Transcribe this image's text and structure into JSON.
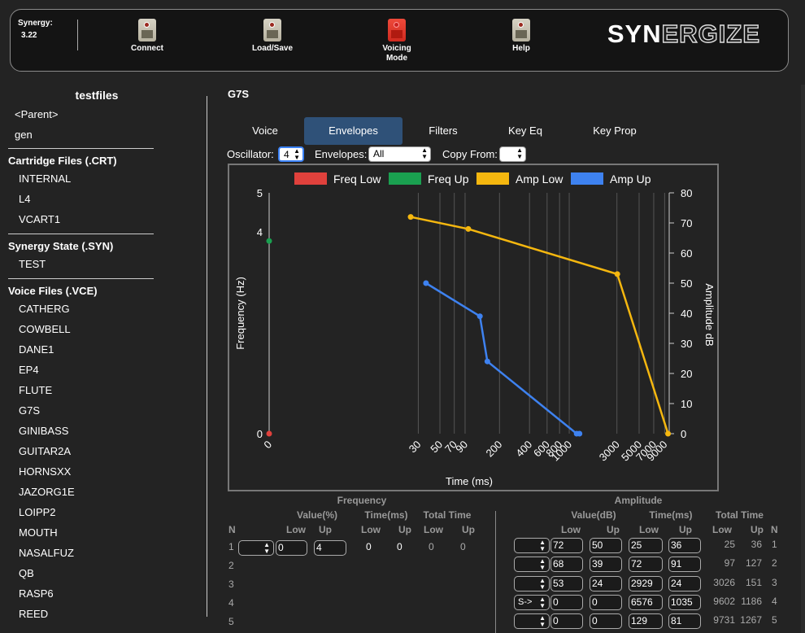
{
  "app": {
    "version_label": "Synergy:",
    "version": "3.22",
    "logo_bold": "SYN",
    "logo_outline": "ERGIZE"
  },
  "toolbar": {
    "connect": "Connect",
    "load_save": "Load/Save",
    "voicing_mode_1": "Voicing",
    "voicing_mode_2": "Mode",
    "help": "Help"
  },
  "sidebar": {
    "folder": "testfiles",
    "parent": "<Parent>",
    "gen": "gen",
    "crt_header": "Cartridge Files (.CRT)",
    "crt_files": [
      "INTERNAL",
      "L4",
      "VCART1"
    ],
    "syn_header": "Synergy State (.SYN)",
    "syn_files": [
      "TEST"
    ],
    "vce_header": "Voice Files (.VCE)",
    "vce_files": [
      "CATHERG",
      "COWBELL",
      "DANE1",
      "EP4",
      "FLUTE",
      "G7S",
      "GINIBASS",
      "GUITAR2A",
      "HORNSXX",
      "JAZORG1E",
      "LOIPP2",
      "MOUTH",
      "NASALFUZ",
      "QB",
      "RASP6",
      "REED"
    ]
  },
  "voice": {
    "name": "G7S"
  },
  "tabs": [
    "Voice",
    "Envelopes",
    "Filters",
    "Key Eq",
    "Key Prop"
  ],
  "controls": {
    "osc_label": "Oscillator:",
    "osc_value": "4",
    "env_label": "Envelopes:",
    "env_value": "All",
    "copy_label": "Copy From:",
    "copy_value": ""
  },
  "chart_data": {
    "type": "line",
    "legend": [
      "Freq Low",
      "Freq Up",
      "Amp Low",
      "Amp Up"
    ],
    "colors": {
      "freq_low": "#e0413c",
      "freq_up": "#1aa050",
      "amp_low": "#f5b70f",
      "amp_up": "#3e82f0"
    },
    "xlabel": "Time (ms)",
    "ylabel_left": "Frequency (Hz)",
    "ylabel_right": "Amplitude dB",
    "x_ticks": [
      0,
      30,
      50,
      70,
      90,
      200,
      400,
      600,
      800,
      1000,
      3000,
      5000,
      7000,
      9000
    ],
    "y_left_ticks": [
      0,
      4,
      5
    ],
    "y_right_ticks": [
      0,
      10,
      20,
      30,
      40,
      50,
      60,
      70,
      80
    ],
    "series": [
      {
        "name": "Freq Low",
        "axis": "left",
        "points": [
          [
            0,
            0
          ]
        ]
      },
      {
        "name": "Freq Up",
        "axis": "left",
        "points": [
          [
            0,
            4
          ]
        ]
      },
      {
        "name": "Amp Low",
        "axis": "right",
        "points": [
          [
            25,
            72
          ],
          [
            97,
            68
          ],
          [
            3026,
            53
          ],
          [
            9731,
            0
          ]
        ]
      },
      {
        "name": "Amp Up",
        "axis": "right",
        "points": [
          [
            36,
            50
          ],
          [
            127,
            39
          ],
          [
            151,
            24
          ],
          [
            1186,
            0
          ],
          [
            1267,
            0
          ]
        ]
      }
    ]
  },
  "freq_table": {
    "title": "Frequency",
    "value_hdr": "Value(%)",
    "time_hdr": "Time(ms)",
    "total_hdr": "Total Time",
    "n_hdr": "N",
    "low": "Low",
    "up": "Up",
    "rows": [
      {
        "n": "1",
        "sel": "",
        "low": "0",
        "up": "4",
        "tlow": "0",
        "tup": "0",
        "totlow": "0",
        "totup": "0"
      },
      {
        "n": "2"
      },
      {
        "n": "3"
      },
      {
        "n": "4"
      },
      {
        "n": "5"
      }
    ]
  },
  "amp_table": {
    "title": "Amplitude",
    "value_hdr": "Value(dB)",
    "time_hdr": "Time(ms)",
    "total_hdr": "Total Time",
    "n_hdr": "N",
    "low": "Low",
    "up": "Up",
    "rows": [
      {
        "n": "1",
        "sel": "",
        "vlow": "72",
        "vup": "50",
        "tlow": "25",
        "tup": "36",
        "totlow": "25",
        "totup": "36"
      },
      {
        "n": "2",
        "sel": "",
        "vlow": "68",
        "vup": "39",
        "tlow": "72",
        "tup": "91",
        "totlow": "97",
        "totup": "127"
      },
      {
        "n": "3",
        "sel": "",
        "vlow": "53",
        "vup": "24",
        "tlow": "2929",
        "tup": "24",
        "totlow": "3026",
        "totup": "151"
      },
      {
        "n": "4",
        "sel": "S->",
        "vlow": "0",
        "vup": "0",
        "tlow": "6576",
        "tup": "1035",
        "totlow": "9602",
        "totup": "1186"
      },
      {
        "n": "5",
        "sel": "",
        "vlow": "0",
        "vup": "0",
        "tlow": "129",
        "tup": "81",
        "totlow": "9731",
        "totup": "1267"
      }
    ]
  }
}
